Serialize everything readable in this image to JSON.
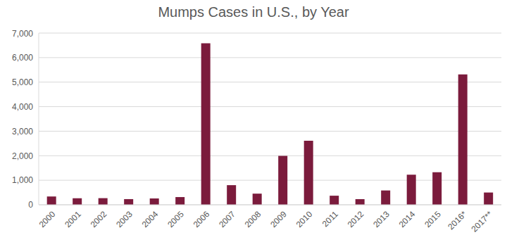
{
  "chart_data": {
    "type": "bar",
    "title": "Mumps Cases in U.S., by Year",
    "categories": [
      "2000",
      "2001",
      "2002",
      "2003",
      "2004",
      "2005",
      "2006",
      "2007",
      "2008",
      "2009",
      "2010",
      "2011",
      "2012",
      "2013",
      "2014",
      "2015",
      "2016*",
      "2017**"
    ],
    "values": [
      338,
      266,
      270,
      231,
      258,
      314,
      6584,
      800,
      454,
      1991,
      2612,
      370,
      229,
      584,
      1223,
      1329,
      5311,
      500
    ],
    "color": "#7b1b3c",
    "ylim": [
      0,
      7000
    ],
    "yticks": [
      0,
      {
        "value": 1000,
        "label": "1,000"
      },
      {
        "value": 2000,
        "label": "2,000"
      },
      {
        "value": 3000,
        "label": "3,000"
      },
      {
        "value": 4000,
        "label": "4,000"
      },
      {
        "value": 5000,
        "label": "5,000"
      },
      {
        "value": 6000,
        "label": "6,000"
      },
      {
        "value": 7000,
        "label": "7,000"
      }
    ],
    "grid": true
  }
}
